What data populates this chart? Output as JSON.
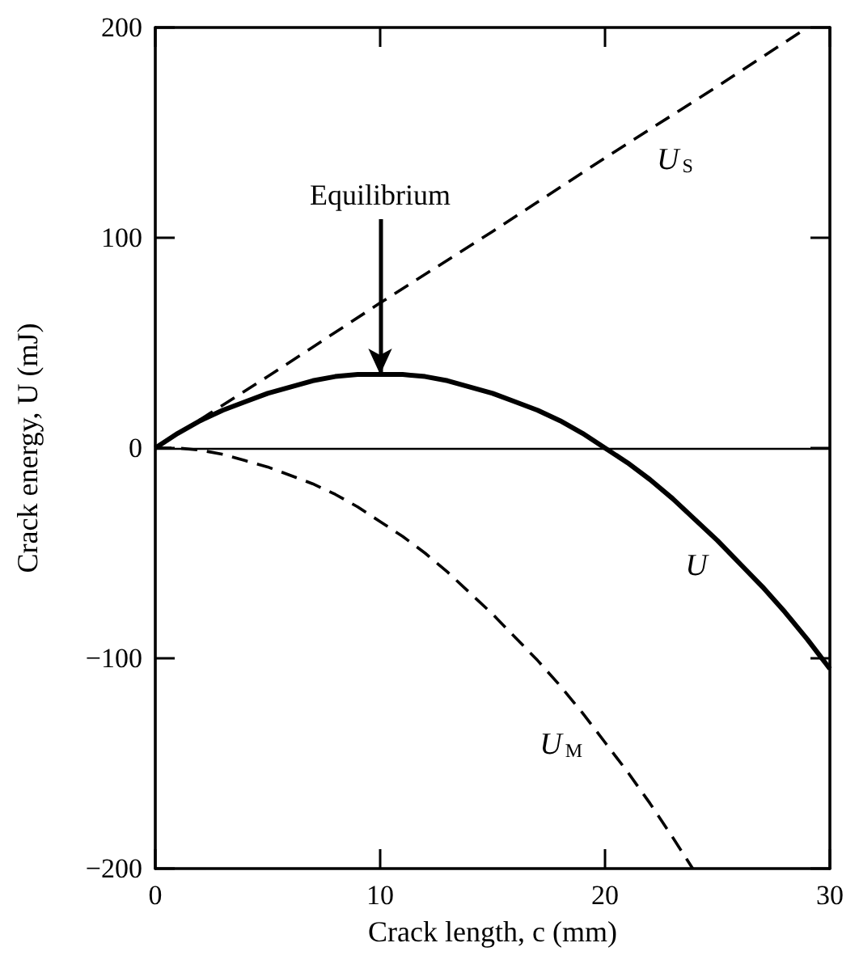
{
  "chart_data": {
    "type": "line",
    "xlabel": "Crack length, c (mm)",
    "ylabel": "Crack energy, U (mJ)",
    "xlim": [
      0,
      30
    ],
    "ylim": [
      -200,
      200
    ],
    "xticks": [
      0,
      10,
      20,
      30
    ],
    "yticks": [
      -200,
      -100,
      0,
      100,
      200
    ],
    "annotations": [
      {
        "text": "Equilibrium",
        "x": 10,
        "y": 35
      }
    ],
    "ref_lines": [
      {
        "axis": "y",
        "value": 0,
        "color": "#000000",
        "line_style": "solid"
      }
    ],
    "series": [
      {
        "name": "U$_{S}$",
        "color": "#000000",
        "line_style": "dashed",
        "x": [
          0,
          5,
          10,
          15,
          20,
          25,
          29
        ],
        "values": [
          0,
          34,
          69,
          103,
          138,
          172,
          200
        ]
      },
      {
        "name": "U",
        "color": "#000000",
        "line_style": "solid",
        "x": [
          0,
          1,
          2,
          3,
          4,
          5,
          6,
          7,
          8,
          9,
          10,
          11,
          12,
          13,
          14,
          15,
          16,
          17,
          18,
          19,
          20,
          21,
          22,
          23,
          24,
          25,
          26,
          27,
          28,
          29,
          30
        ],
        "values": [
          0,
          7,
          13,
          18,
          22,
          26,
          29,
          32,
          34,
          35,
          35,
          35,
          34,
          32,
          29,
          26,
          22,
          18,
          13,
          7,
          0,
          -7,
          -15,
          -24,
          -34,
          -44,
          -55,
          -66,
          -78,
          -91,
          -105
        ]
      },
      {
        "name": "U$_{M}$",
        "color": "#000000",
        "line_style": "dashed",
        "x": [
          0,
          1,
          2,
          3,
          4,
          5,
          6,
          7,
          8,
          9,
          10,
          11,
          12,
          13,
          14,
          15,
          16,
          17,
          18,
          19,
          20,
          21,
          22,
          23,
          23.9
        ],
        "values": [
          0,
          0,
          -1,
          -3,
          -6,
          -9,
          -13,
          -17,
          -22,
          -28,
          -35,
          -42,
          -50,
          -59,
          -69,
          -79,
          -90,
          -101,
          -113,
          -126,
          -140,
          -154,
          -169,
          -185,
          -200
        ]
      }
    ]
  }
}
